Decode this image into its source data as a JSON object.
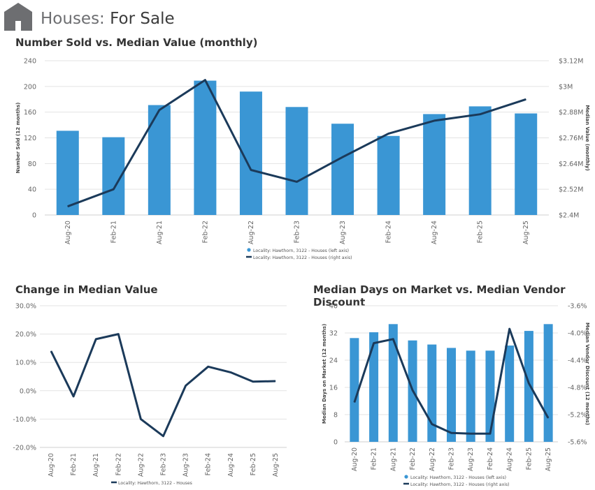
{
  "header": {
    "title_prefix": "Houses:",
    "title_suffix": "For Sale",
    "icon": "house-icon"
  },
  "colors": {
    "bar": "#3a96d4",
    "line": "#1b3a5a",
    "grid": "#e3e3e3",
    "axis_text": "#666666"
  },
  "chart_data": [
    {
      "id": "sold_vs_median",
      "type": "bar",
      "title": "Number Sold vs. Median Value (monthly)",
      "categories": [
        "Aug-20",
        "Feb-21",
        "Aug-21",
        "Feb-22",
        "Aug-22",
        "Feb-23",
        "Aug-23",
        "Feb-24",
        "Aug-24",
        "Feb-25",
        "Aug-25"
      ],
      "y_left": {
        "label": "Number Sold (12 months)",
        "range": [
          0,
          240
        ],
        "ticks": [
          "0",
          "40",
          "80",
          "120",
          "160",
          "200",
          "240"
        ],
        "tick_values": [
          0,
          40,
          80,
          120,
          160,
          200,
          240
        ]
      },
      "y_right": {
        "label": "Median Value (monthly)",
        "range": [
          2.4,
          3.12
        ],
        "ticks": [
          "$2.4M",
          "$2.52M",
          "$2.64M",
          "$2.76M",
          "$2.88M",
          "$3M",
          "$3.12M"
        ],
        "tick_values": [
          2.4,
          2.52,
          2.64,
          2.76,
          2.88,
          3.0,
          3.12
        ]
      },
      "series": [
        {
          "name": "Locality: Hawthorn, 3122 - Houses (left axis)",
          "kind": "bar",
          "axis": "left",
          "values": [
            131,
            121,
            171,
            209,
            192,
            168,
            142,
            123,
            157,
            169,
            158
          ]
        },
        {
          "name": "Locality: Hawthorn, 3122 - Houses (right axis)",
          "kind": "line",
          "axis": "right",
          "values": [
            2.44,
            2.52,
            2.89,
            3.03,
            2.61,
            2.555,
            2.67,
            2.78,
            2.84,
            2.87,
            2.94
          ]
        }
      ]
    },
    {
      "id": "change_median",
      "type": "line",
      "title": "Change in Median Value",
      "categories": [
        "Aug-20",
        "Feb-21",
        "Aug-21",
        "Feb-22",
        "Aug-22",
        "Feb-23",
        "Aug-23",
        "Feb-24",
        "Aug-24",
        "Feb-25",
        "Aug-25"
      ],
      "y_left": {
        "label": "",
        "range": [
          -20,
          30
        ],
        "ticks": [
          "-20.0%",
          "-10.0%",
          "0.0%",
          "10.0%",
          "20.0%",
          "30.0%"
        ],
        "tick_values": [
          -20,
          -10,
          0,
          10,
          20,
          30
        ]
      },
      "series": [
        {
          "name": "Locality: Hawthorn, 3122 - Houses",
          "kind": "line",
          "axis": "left",
          "values": [
            14.0,
            -2.0,
            18.2,
            20.0,
            -10.0,
            -16.0,
            1.8,
            8.5,
            6.5,
            3.2,
            3.4
          ]
        }
      ]
    },
    {
      "id": "days_vs_discount",
      "type": "bar",
      "title": "Median Days on Market vs. Median Vendor Discount",
      "categories": [
        "Aug-20",
        "Feb-21",
        "Aug-21",
        "Feb-22",
        "Aug-22",
        "Feb-23",
        "Aug-23",
        "Feb-24",
        "Aug-24",
        "Feb-25",
        "Aug-25"
      ],
      "y_left": {
        "label": "Median Days on Market (12 months)",
        "range": [
          0,
          40
        ],
        "ticks": [
          "0",
          "8",
          "16",
          "24",
          "32",
          "40"
        ],
        "tick_values": [
          0,
          8,
          16,
          24,
          32,
          40
        ]
      },
      "y_right": {
        "label": "Median Vendor Discount (12 months)",
        "range": [
          -5.6,
          -3.6
        ],
        "ticks": [
          "-5.6%",
          "-5.2%",
          "-4.8%",
          "-4.4%",
          "-4.0%",
          "-3.6%"
        ],
        "tick_values": [
          -5.6,
          -5.2,
          -4.8,
          -4.4,
          -4.0,
          -3.6
        ]
      },
      "series": [
        {
          "name": "Locality: Hawthorn, 3122 - Houses (left axis)",
          "kind": "bar",
          "axis": "left",
          "values": [
            30.5,
            32.2,
            34.6,
            29.8,
            28.6,
            27.6,
            26.8,
            26.8,
            28.3,
            32.6,
            34.6
          ]
        },
        {
          "name": "Locality: Hawthorn, 3122 - Houses (right axis)",
          "kind": "line",
          "axis": "right",
          "values": [
            -5.02,
            -4.15,
            -4.09,
            -4.84,
            -5.34,
            -5.47,
            -5.48,
            -5.48,
            -3.94,
            -4.74,
            -5.25
          ]
        }
      ]
    }
  ]
}
